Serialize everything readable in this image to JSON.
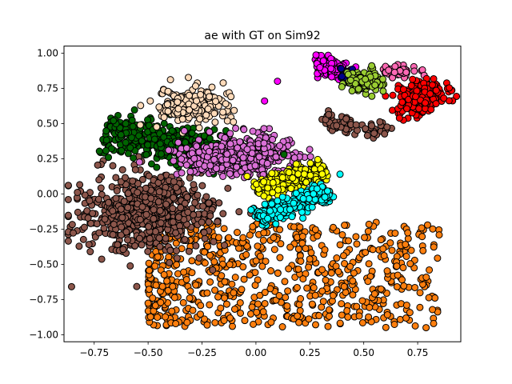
{
  "chart_data": {
    "type": "scatter",
    "title": "ae with GT on Sim92",
    "xlabel": "",
    "ylabel": "",
    "xlim": [
      -0.89,
      0.95
    ],
    "ylim": [
      -1.05,
      1.05
    ],
    "x_ticks": [
      -0.75,
      -0.5,
      -0.25,
      0.0,
      0.25,
      0.5,
      0.75
    ],
    "x_tick_labels": [
      "−0.75",
      "−0.50",
      "−0.25",
      "0.00",
      "0.25",
      "0.50",
      "0.75"
    ],
    "y_ticks": [
      -1.0,
      -0.75,
      -0.5,
      -0.25,
      0.0,
      0.25,
      0.5,
      0.75,
      1.0
    ],
    "y_tick_labels": [
      "−1.00",
      "−0.75",
      "−0.50",
      "−0.25",
      "0.00",
      "0.25",
      "0.50",
      "0.75",
      "1.00"
    ],
    "grid": false,
    "legend": "none",
    "marker_edge_color": "#000000",
    "clusters": [
      {
        "color": "#ff7f0e",
        "count": 700,
        "shape": "box",
        "x_range": [
          -0.5,
          0.85
        ],
        "y_range": [
          -0.95,
          -0.2
        ],
        "density": "denser on left"
      },
      {
        "color": "#8c564b",
        "count": 650,
        "shape": "ellipse",
        "center": [
          -0.5,
          -0.12
        ],
        "spread": [
          0.16,
          0.13
        ],
        "angle_deg": 12
      },
      {
        "color": "#8c564b",
        "count": 70,
        "shape": "band",
        "from": [
          0.3,
          0.52
        ],
        "to": [
          0.62,
          0.43
        ],
        "width": 0.03
      },
      {
        "color": "#006400",
        "count": 380,
        "shape": "band",
        "from": [
          -0.7,
          0.45
        ],
        "to": [
          -0.15,
          0.3
        ],
        "width": 0.07
      },
      {
        "color": "#ffdab9",
        "count": 180,
        "shape": "ellipse",
        "center": [
          -0.3,
          0.63
        ],
        "spread": [
          0.09,
          0.07
        ],
        "angle_deg": 0
      },
      {
        "color": "#da70d6",
        "count": 450,
        "shape": "ellipse",
        "center": [
          -0.08,
          0.27
        ],
        "spread": [
          0.14,
          0.07
        ],
        "angle_deg": 0
      },
      {
        "color": "#ffff00",
        "count": 260,
        "shape": "band",
        "from": [
          0.0,
          0.03
        ],
        "to": [
          0.32,
          0.18
        ],
        "width": 0.035
      },
      {
        "color": "#00ffff",
        "count": 280,
        "shape": "band",
        "from": [
          0.0,
          -0.17
        ],
        "to": [
          0.34,
          0.02
        ],
        "width": 0.035
      },
      {
        "color": "#ff00ff",
        "count": 90,
        "shape": "ellipse",
        "center": [
          0.34,
          0.9
        ],
        "spread": [
          0.04,
          0.03
        ],
        "angle_deg": -25
      },
      {
        "color": "#00008b",
        "count": 35,
        "shape": "ellipse",
        "center": [
          0.42,
          0.84
        ],
        "spread": [
          0.02,
          0.025
        ],
        "angle_deg": 0
      },
      {
        "color": "#9acd32",
        "count": 110,
        "shape": "ellipse",
        "center": [
          0.5,
          0.8
        ],
        "spread": [
          0.04,
          0.04
        ],
        "angle_deg": -20
      },
      {
        "color": "#ff69b4",
        "count": 45,
        "shape": "ellipse",
        "center": [
          0.66,
          0.87
        ],
        "spread": [
          0.05,
          0.02
        ],
        "angle_deg": 0
      },
      {
        "color": "#ff0000",
        "count": 260,
        "shape": "ellipse",
        "center": [
          0.77,
          0.68
        ],
        "spread": [
          0.05,
          0.07
        ],
        "angle_deg": -40
      }
    ],
    "outliers": [
      {
        "x": 0.1,
        "y": 0.8,
        "color": "#ff00ff"
      },
      {
        "x": 0.04,
        "y": 0.66,
        "color": "#ff00ff"
      },
      {
        "x": 0.39,
        "y": 0.14,
        "color": "#00ffff"
      },
      {
        "x": 0.13,
        "y": 0.28,
        "color": "#006400"
      },
      {
        "x": 0.59,
        "y": 0.73,
        "color": "#9acd32"
      }
    ]
  }
}
